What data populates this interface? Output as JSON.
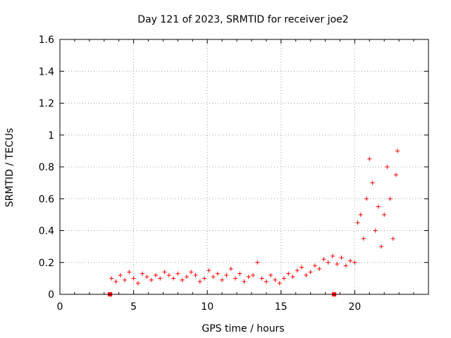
{
  "chart_data": {
    "type": "scatter",
    "title": "Day 121 of 2023, SRMTID for receiver joe2",
    "xlabel": "GPS time / hours",
    "ylabel": "SRMTID / TECUs",
    "xlim": [
      0,
      25
    ],
    "ylim": [
      0,
      1.6
    ],
    "xticks": [
      0,
      5,
      10,
      15,
      20
    ],
    "xtick_labels": [
      "0",
      "5",
      "10",
      "15",
      "20"
    ],
    "yticks": [
      0,
      0.2,
      0.4,
      0.6,
      0.8,
      1,
      1.2,
      1.4,
      1.6
    ],
    "ytick_labels": [
      "0",
      "0.2",
      "0.4",
      "0.6",
      "0.8",
      "1",
      "1.2",
      "1.4",
      "1.6"
    ],
    "grid": true,
    "marker": "+",
    "color": "#ff0000",
    "range_markers": [
      3.4,
      18.6
    ],
    "series": [
      {
        "name": "joe2",
        "x": [
          3.5,
          3.8,
          4.1,
          4.4,
          4.7,
          5.0,
          5.3,
          5.6,
          5.9,
          6.2,
          6.5,
          6.8,
          7.1,
          7.4,
          7.7,
          8.0,
          8.3,
          8.6,
          8.9,
          9.2,
          9.5,
          9.8,
          10.1,
          10.4,
          10.7,
          11.0,
          11.3,
          11.6,
          11.9,
          12.2,
          12.5,
          12.8,
          13.1,
          13.4,
          13.7,
          14.0,
          14.3,
          14.6,
          14.9,
          15.2,
          15.5,
          15.8,
          16.1,
          16.4,
          16.7,
          17.0,
          17.3,
          17.6,
          17.9,
          18.2,
          18.5,
          18.8,
          19.1,
          19.4,
          19.7,
          20.0,
          20.2,
          20.4,
          20.6,
          20.8,
          21.0,
          21.2,
          21.4,
          21.6,
          21.8,
          22.0,
          22.2,
          22.4,
          22.6,
          22.8,
          22.9
        ],
        "y": [
          0.1,
          0.08,
          0.12,
          0.09,
          0.14,
          0.1,
          0.07,
          0.13,
          0.11,
          0.09,
          0.12,
          0.1,
          0.14,
          0.12,
          0.1,
          0.13,
          0.09,
          0.11,
          0.14,
          0.12,
          0.08,
          0.1,
          0.15,
          0.11,
          0.13,
          0.09,
          0.12,
          0.16,
          0.1,
          0.13,
          0.08,
          0.11,
          0.12,
          0.2,
          0.1,
          0.08,
          0.12,
          0.09,
          0.07,
          0.1,
          0.13,
          0.11,
          0.15,
          0.17,
          0.12,
          0.14,
          0.18,
          0.16,
          0.22,
          0.2,
          0.24,
          0.19,
          0.23,
          0.18,
          0.21,
          0.2,
          0.45,
          0.5,
          0.35,
          0.6,
          0.85,
          0.7,
          0.4,
          0.55,
          0.3,
          0.5,
          0.8,
          0.6,
          0.35,
          0.75,
          0.9
        ]
      }
    ]
  }
}
